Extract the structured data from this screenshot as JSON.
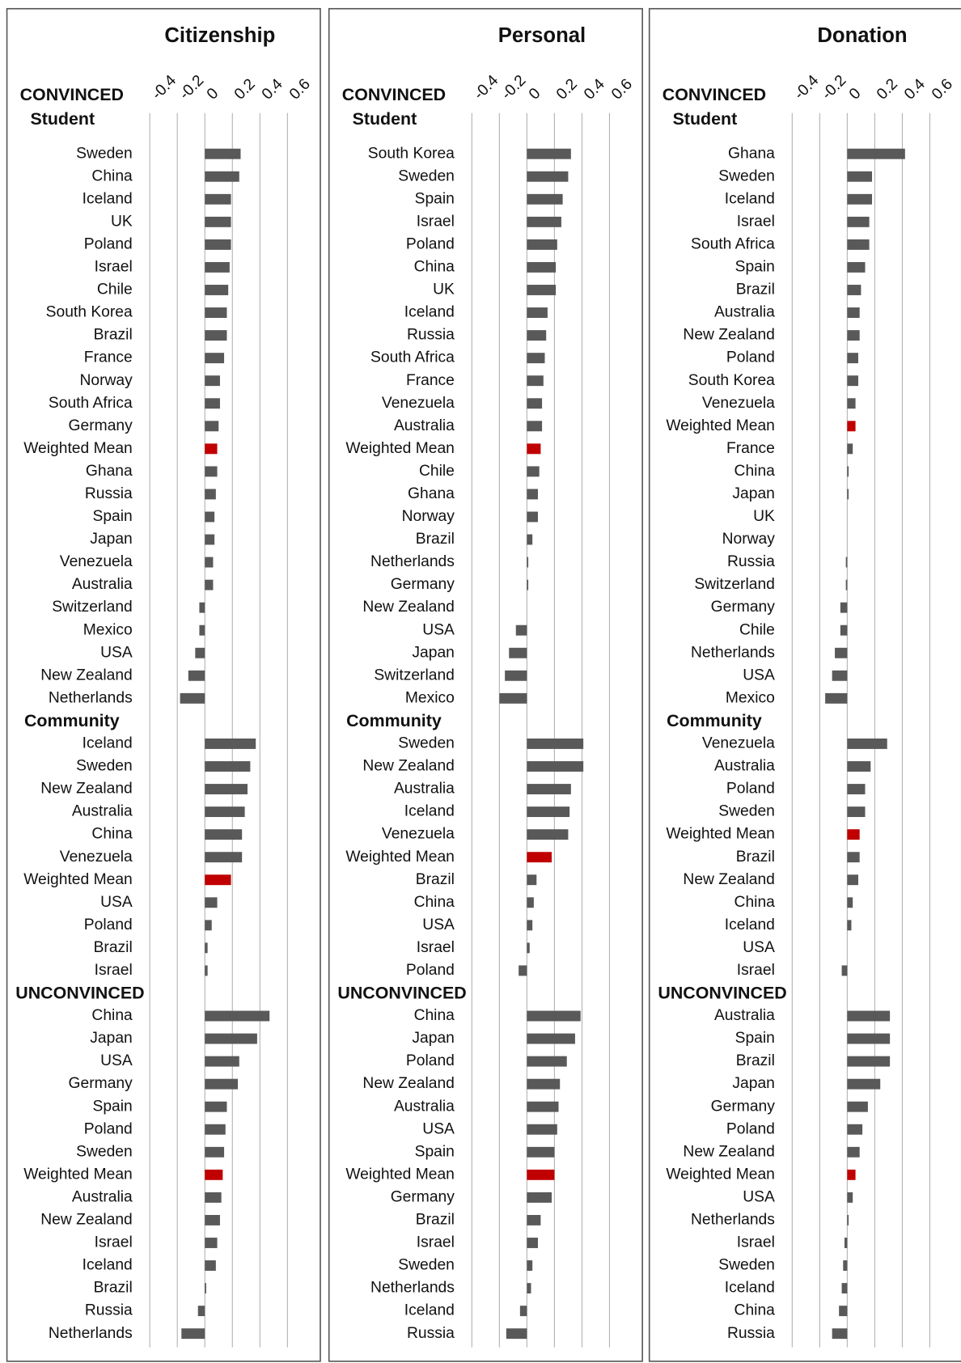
{
  "highlight": "Weighted Mean",
  "chart_data": [
    {
      "type": "bar",
      "orientation": "horizontal",
      "title": "Citizenship",
      "color": "#595959",
      "highlight_color": "#c00000",
      "xlim": [
        -0.4,
        0.6
      ],
      "xticks": [
        -0.4,
        -0.2,
        0,
        0.2,
        0.4,
        0.6
      ],
      "grid": true,
      "groups": [
        {
          "label": "CONVINCED",
          "sublabel": "Student",
          "categories": [
            "Sweden",
            "China",
            "Iceland",
            "UK",
            "Poland",
            "Israel",
            "Chile",
            "South Korea",
            "Brazil",
            "France",
            "Norway",
            "South Africa",
            "Germany",
            "Weighted Mean",
            "Ghana",
            "Russia",
            "Spain",
            "Japan",
            "Venezuela",
            "Australia",
            "Switzerland",
            "Mexico",
            "USA",
            "New Zealand",
            "Netherlands"
          ],
          "values": [
            0.26,
            0.25,
            0.19,
            0.19,
            0.19,
            0.18,
            0.17,
            0.16,
            0.16,
            0.14,
            0.11,
            0.11,
            0.1,
            0.09,
            0.09,
            0.08,
            0.07,
            0.07,
            0.06,
            0.06,
            -0.04,
            -0.04,
            -0.07,
            -0.12,
            -0.18
          ]
        },
        {
          "label": "Community",
          "categories": [
            "Iceland",
            "Sweden",
            "New Zealand",
            "Australia",
            "China",
            "Venezuela",
            "Weighted Mean",
            "USA",
            "Poland",
            "Brazil",
            "Israel"
          ],
          "values": [
            0.37,
            0.33,
            0.31,
            0.29,
            0.27,
            0.27,
            0.19,
            0.09,
            0.05,
            0.02,
            0.02
          ]
        },
        {
          "label": "UNCONVINCED",
          "categories": [
            "China",
            "Japan",
            "USA",
            "Germany",
            "Spain",
            "Poland",
            "Sweden",
            "Weighted Mean",
            "Australia",
            "New Zealand",
            "Israel",
            "Iceland",
            "Brazil",
            "Russia",
            "Netherlands"
          ],
          "values": [
            0.47,
            0.38,
            0.25,
            0.24,
            0.16,
            0.15,
            0.14,
            0.13,
            0.12,
            0.11,
            0.09,
            0.08,
            0.01,
            -0.05,
            -0.17
          ]
        }
      ]
    },
    {
      "type": "bar",
      "orientation": "horizontal",
      "title": "Personal",
      "color": "#595959",
      "highlight_color": "#c00000",
      "xlim": [
        -0.4,
        0.6
      ],
      "xticks": [
        -0.4,
        -0.2,
        0,
        0.2,
        0.4,
        0.6
      ],
      "grid": true,
      "groups": [
        {
          "label": "CONVINCED",
          "sublabel": "Student",
          "categories": [
            "South Korea",
            "Sweden",
            "Spain",
            "Israel",
            "Poland",
            "China",
            "UK",
            "Iceland",
            "Russia",
            "South Africa",
            "France",
            "Venezuela",
            "Australia",
            "Weighted Mean",
            "Chile",
            "Ghana",
            "Norway",
            "Brazil",
            "Netherlands",
            "Germany",
            "New Zealand",
            "USA",
            "Japan",
            "Switzerland",
            "Mexico"
          ],
          "values": [
            0.32,
            0.3,
            0.26,
            0.25,
            0.22,
            0.21,
            0.21,
            0.15,
            0.14,
            0.13,
            0.12,
            0.11,
            0.11,
            0.1,
            0.09,
            0.08,
            0.08,
            0.04,
            0.01,
            0.01,
            0,
            -0.08,
            -0.13,
            -0.16,
            -0.2
          ]
        },
        {
          "label": "Community",
          "categories": [
            "Sweden",
            "New Zealand",
            "Australia",
            "Iceland",
            "Venezuela",
            "Weighted Mean",
            "Brazil",
            "China",
            "USA",
            "Israel",
            "Poland"
          ],
          "values": [
            0.41,
            0.41,
            0.32,
            0.31,
            0.3,
            0.18,
            0.07,
            0.05,
            0.04,
            0.02,
            -0.06
          ]
        },
        {
          "label": "UNCONVINCED",
          "categories": [
            "China",
            "Japan",
            "Poland",
            "New Zealand",
            "Australia",
            "USA",
            "Spain",
            "Weighted Mean",
            "Germany",
            "Brazil",
            "Israel",
            "Sweden",
            "Netherlands",
            "Iceland",
            "Russia"
          ],
          "values": [
            0.39,
            0.35,
            0.29,
            0.24,
            0.23,
            0.22,
            0.2,
            0.2,
            0.18,
            0.1,
            0.08,
            0.04,
            0.03,
            -0.05,
            -0.15
          ]
        }
      ]
    },
    {
      "type": "bar",
      "orientation": "horizontal",
      "title": "Donation",
      "color": "#595959",
      "highlight_color": "#c00000",
      "xlim": [
        -0.4,
        0.6
      ],
      "xticks": [
        -0.4,
        -0.2,
        0,
        0.2,
        0.4,
        0.6
      ],
      "grid": true,
      "groups": [
        {
          "label": "CONVINCED",
          "sublabel": "Student",
          "categories": [
            "Ghana",
            "Sweden",
            "Iceland",
            "Israel",
            "South Africa",
            "Spain",
            "Brazil",
            "Australia",
            "New Zealand",
            "Poland",
            "South Korea",
            "Venezuela",
            "Weighted Mean",
            "France",
            "China",
            "Japan",
            "UK",
            "Norway",
            "Russia",
            "Switzerland",
            "Germany",
            "Chile",
            "Netherlands",
            "USA",
            "Mexico"
          ],
          "values": [
            0.42,
            0.18,
            0.18,
            0.16,
            0.16,
            0.13,
            0.1,
            0.09,
            0.09,
            0.08,
            0.08,
            0.06,
            0.06,
            0.04,
            0.01,
            0.01,
            0,
            0,
            -0.01,
            -0.01,
            -0.05,
            -0.05,
            -0.09,
            -0.11,
            -0.16
          ]
        },
        {
          "label": "Community",
          "categories": [
            "Venezuela",
            "Australia",
            "Poland",
            "Sweden",
            "Weighted Mean",
            "Brazil",
            "New Zealand",
            "China",
            "Iceland",
            "USA",
            "Israel"
          ],
          "values": [
            0.29,
            0.17,
            0.13,
            0.13,
            0.09,
            0.09,
            0.08,
            0.04,
            0.03,
            0,
            -0.04
          ]
        },
        {
          "label": "UNCONVINCED",
          "categories": [
            "Australia",
            "Spain",
            "Brazil",
            "Japan",
            "Germany",
            "Poland",
            "New Zealand",
            "Weighted Mean",
            "USA",
            "Netherlands",
            "Israel",
            "Sweden",
            "Iceland",
            "China",
            "Russia"
          ],
          "values": [
            0.31,
            0.31,
            0.31,
            0.24,
            0.15,
            0.11,
            0.09,
            0.06,
            0.04,
            0.01,
            -0.02,
            -0.03,
            -0.04,
            -0.06,
            -0.11
          ]
        }
      ]
    }
  ]
}
